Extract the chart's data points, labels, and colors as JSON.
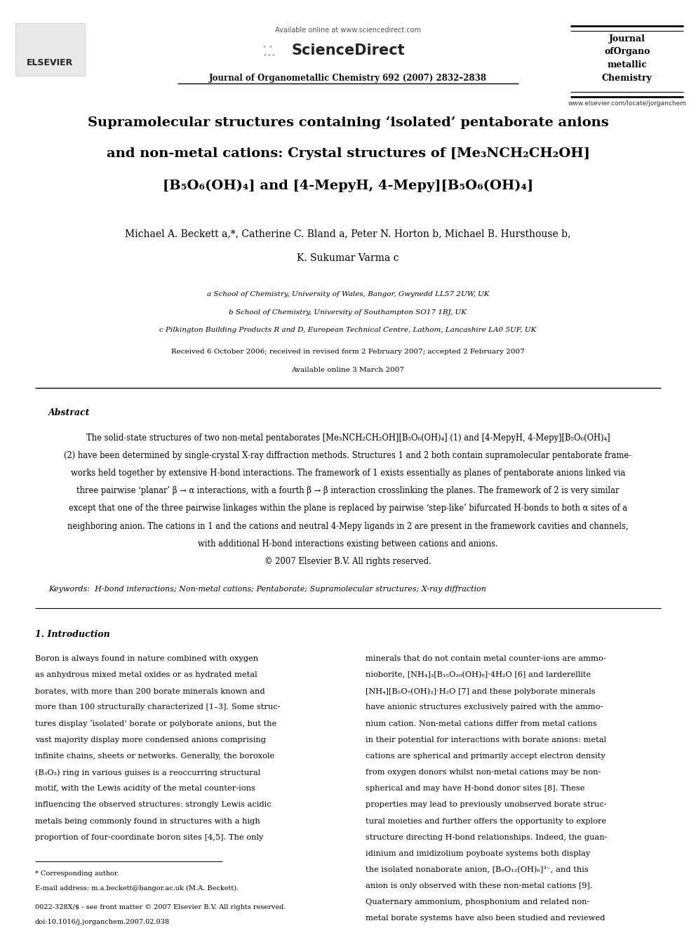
{
  "bg_color": "#ffffff",
  "page_width": 9.92,
  "page_height": 13.23,
  "header": {
    "available_online": "Available online at www.sciencedirect.com",
    "sciencedirect": "ScienceDirect",
    "journal_line": "Journal of Organometallic Chemistry 692 (2007) 2832–2838",
    "journal_name_lines": [
      "Journal",
      "ofOrgano",
      "metallic",
      "Chemistry"
    ],
    "website": "www.elsevier.com/locate/jorganchem",
    "elsevier": "ELSEVIER"
  },
  "title_lines": [
    "Supramolecular structures containing ‘isolated’ pentaborate anions",
    "and non-metal cations: Crystal structures of [Me₃NCH₂CH₂OH]",
    "[B₅O₆(OH)₄] and [4-MepyH, 4-Mepy][B₅O₆(OH)₄]"
  ],
  "authors": "Michael A. Beckett a,*, Catherine C. Bland a, Peter N. Horton b, Michael B. Hursthouse b,",
  "authors2": "K. Sukumar Varma c",
  "affil_a": "a School of Chemistry, University of Wales, Bangor, Gwynedd LL57 2UW, UK",
  "affil_b": "b School of Chemistry, University of Southampton SO17 1BJ, UK",
  "affil_c": "c Pilkington Building Products R and D, European Technical Centre, Lathom, Lancashire LA0 5UF, UK",
  "received": "Received 6 October 2006; received in revised form 2 February 2007; accepted 2 February 2007",
  "available": "Available online 3 March 2007",
  "abstract_title": "Abstract",
  "abstract_lines": [
    "The solid-state structures of two non-metal pentaborates [Me₃NCH₂CH₂OH][B₅O₆(OH)₄] (1) and [4-MepyH, 4-Mepy][B₅O₆(OH)₄]",
    "(2) have been determined by single-crystal X-ray diffraction methods. Structures 1 and 2 both contain supramolecular pentaborate frame-",
    "works held together by extensive H-bond interactions. The framework of 1 exists essentially as planes of pentaborate anions linked via",
    "three pairwise ‘planar’ β → α interactions, with a fourth β → β interaction crosslinking the planes. The framework of 2 is very similar",
    "except that one of the three pairwise linkages within the plane is replaced by pairwise ‘step-like’ bifurcated H-bonds to both α sites of a",
    "neighboring anion. The cations in 1 and the cations and neutral 4-Mepy ligands in 2 are present in the framework cavities and channels,",
    "with additional H-bond interactions existing between cations and anions.",
    "© 2007 Elsevier B.V. All rights reserved."
  ],
  "keywords": "Keywords:  H-bond interactions; Non-metal cations; Pentaborate; Supramolecular structures; X-ray diffraction",
  "section1_title": "1. Introduction",
  "col1_lines": [
    "Boron is always found in nature combined with oxygen",
    "as anhydrous mixed metal oxides or as hydrated metal",
    "borates, with more than 200 borate minerals known and",
    "more than 100 structurally characterized [1–3]. Some struc-",
    "tures display ‘isolated’ borate or polyborate anions, but the",
    "vast majority display more condensed anions comprising",
    "infinite chains, sheets or networks. Generally, the boroxole",
    "(B₃O₃) ring in various guises is a reoccurring structural",
    "motif, with the Lewis acidity of the metal counter-ions",
    "influencing the observed structures: strongly Lewis acidic",
    "metals being commonly found in structures with a high",
    "proportion of four-coordinate boron sites [4,5]. The only"
  ],
  "col2_lines": [
    "minerals that do not contain metal counter-ions are ammo-",
    "nioborite, [NH₄]₃[B₁₅O₂₀(OH)₈]·4H₂O [6] and larderellite",
    "[NH₄][B₅O₇(OH)₂]·H₂O [7] and these polyborate minerals",
    "have anionic structures exclusively paired with the ammo-",
    "nium cation. Non-metal cations differ from metal cations",
    "in their potential for interactions with borate anions: metal",
    "cations are spherical and primarily accept electron density",
    "from oxygen donors whilst non-metal cations may be non-",
    "spherical and may have H-bond donor sites [8]. These",
    "properties may lead to previously unobserved borate struc-",
    "tural moieties and further offers the opportunity to explore",
    "structure directing H-bond relationships. Indeed, the guan-",
    "idinium and imidizolium poyboate systems both display",
    "the isolated nonaborate anion, [B₉O₁₂(OH)₆]³⁻, and this",
    "anion is only observed with these non-metal cations [9].",
    "Quaternary ammonium, phosphonium and related non-",
    "metal borate systems have also been studied and reviewed"
  ],
  "footnote1": "* Corresponding author.",
  "footnote2": "E-mail address: m.a.beckett@bangor.ac.uk (M.A. Beckett).",
  "footnote3": "0022-328X/$ - see front matter © 2007 Elsevier B.V. All rights reserved.",
  "footnote4": "doi:10.1016/j.jorganchem.2007.02.038"
}
